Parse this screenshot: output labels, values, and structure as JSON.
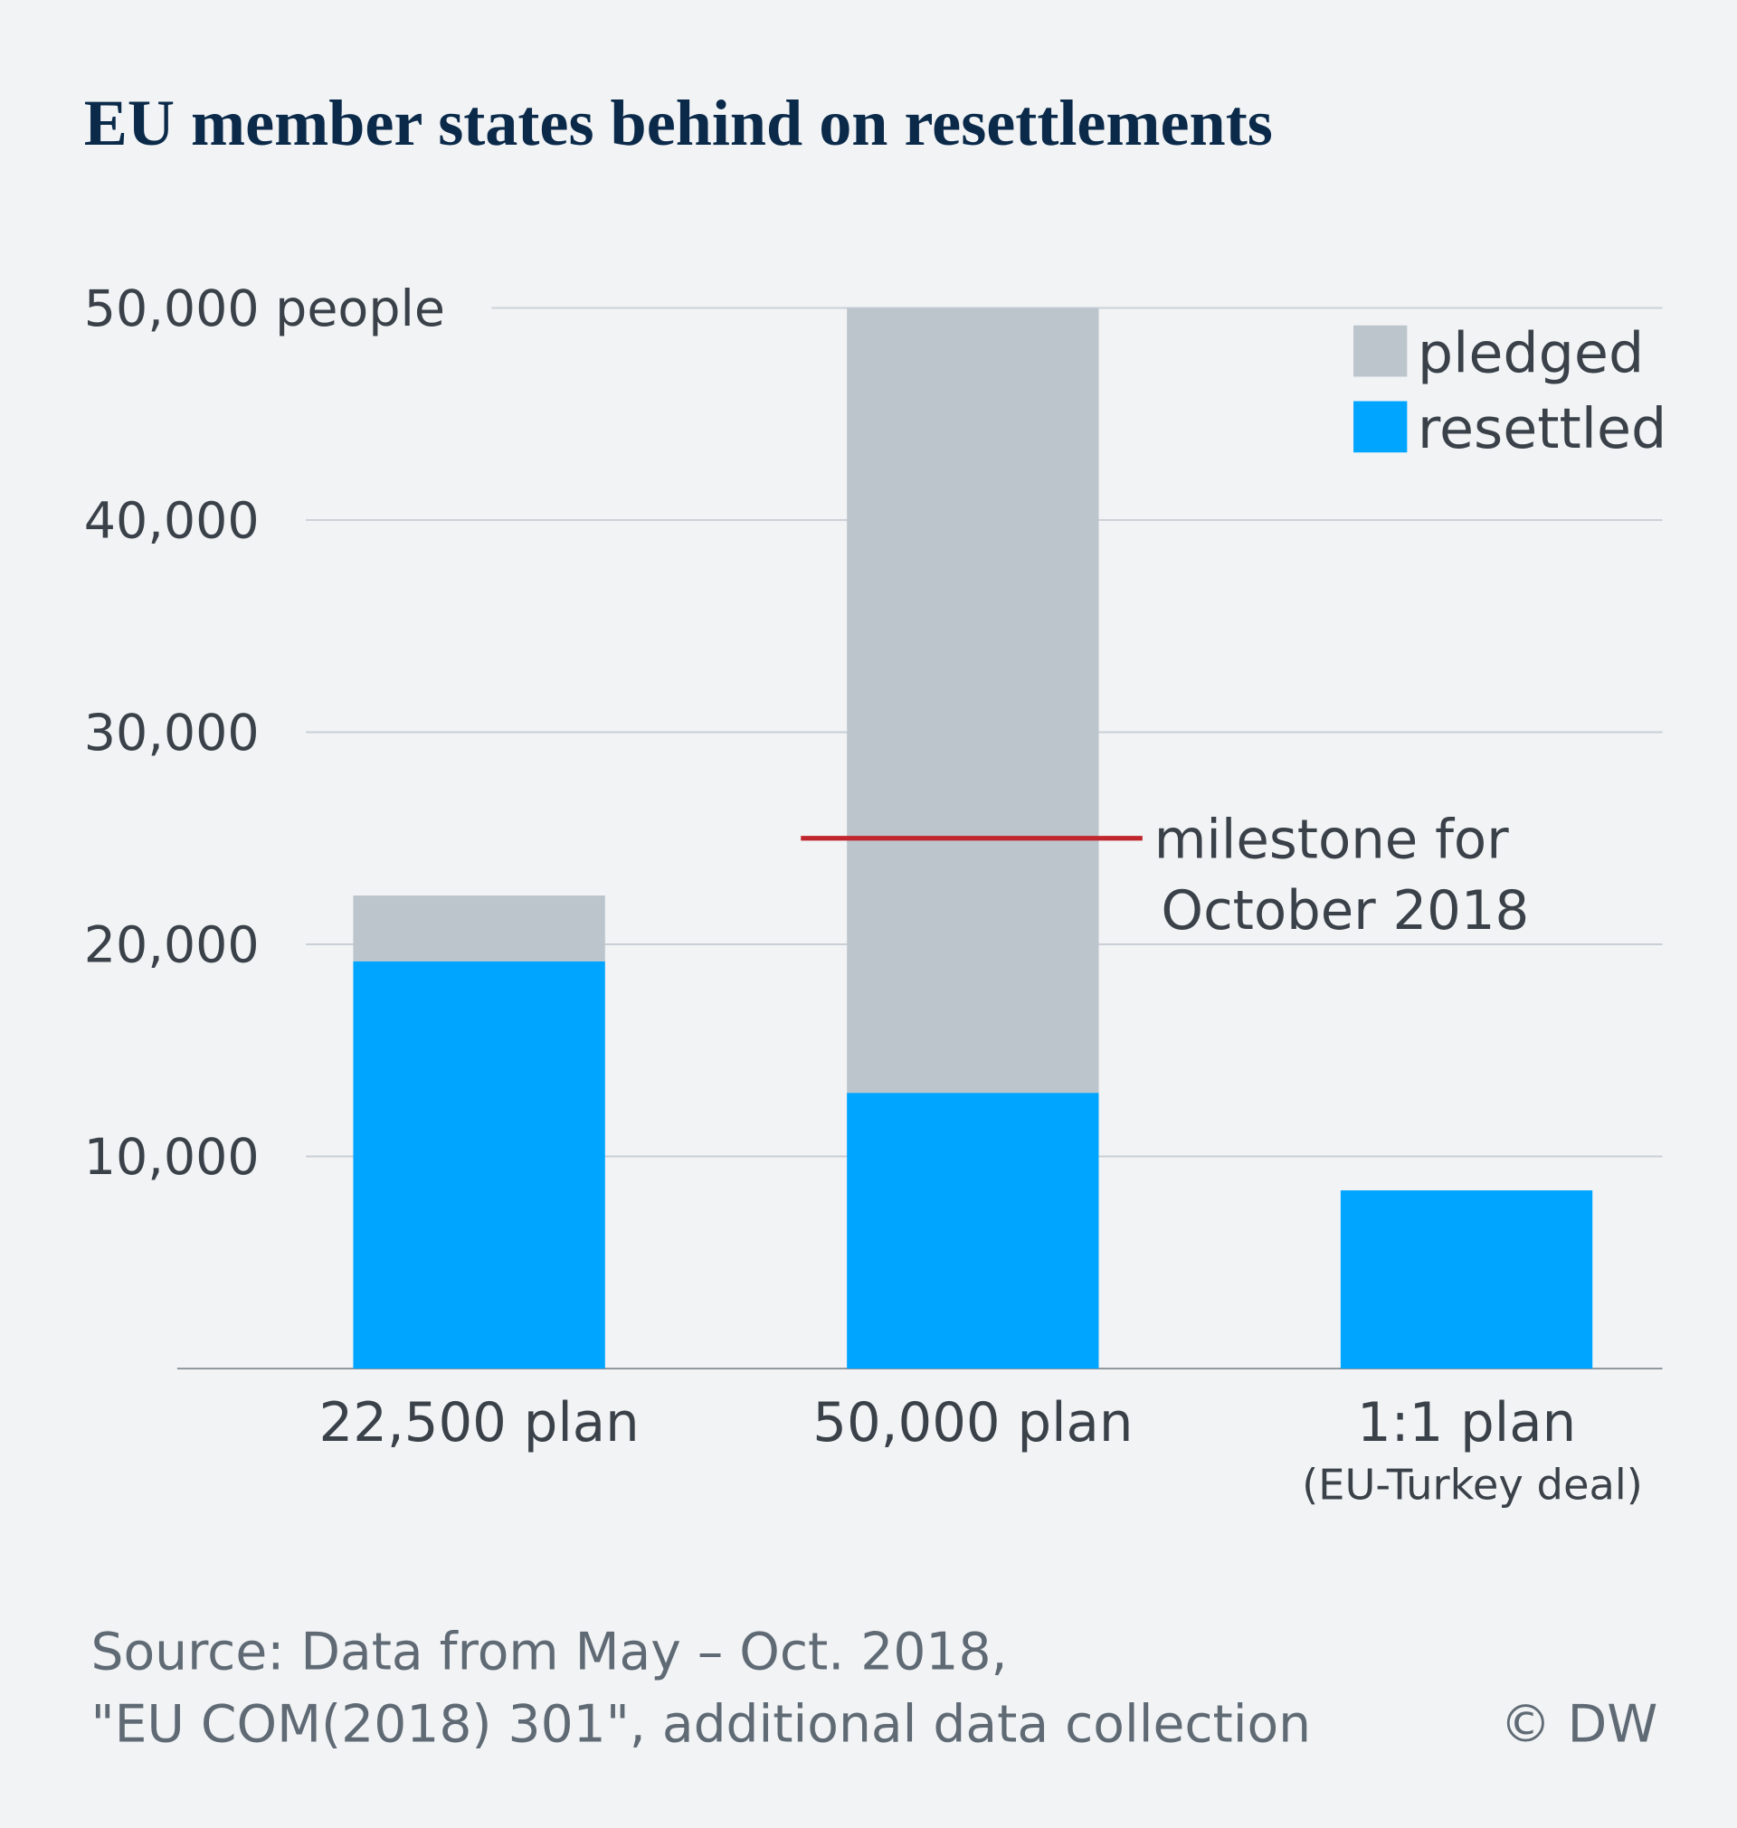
{
  "chart_data": {
    "type": "stacked-bar",
    "title": "EU member states behind on resettlements",
    "categories": [
      "22,500 plan",
      "50,000 plan",
      "1:1 plan"
    ],
    "category_subtitles": [
      null,
      null,
      "(EU-Turkey deal)"
    ],
    "series": [
      {
        "name": "resettled",
        "color": "#00a5ff",
        "values": [
          19200,
          13000,
          8400
        ]
      },
      {
        "name": "pledged",
        "color": "#bdc5cc",
        "values": [
          3100,
          37000,
          null
        ]
      }
    ],
    "ylim": [
      0,
      50000
    ],
    "yticks": [
      {
        "value": 10000,
        "label": "10,000"
      },
      {
        "value": 20000,
        "label": "20,000"
      },
      {
        "value": 30000,
        "label": "30,000"
      },
      {
        "value": 40000,
        "label": "40,000"
      },
      {
        "value": 50000,
        "label": "50,000 people"
      }
    ],
    "grid": true,
    "legend": "top-right",
    "milestone": {
      "value": 25000,
      "color": "#c0262d",
      "label": [
        "milestone for",
        "October 2018"
      ]
    },
    "source": [
      "Source: Data from May – Oct. 2018,",
      "\"EU COM(2018) 301\", additional data collection"
    ],
    "credit": "© DW"
  }
}
